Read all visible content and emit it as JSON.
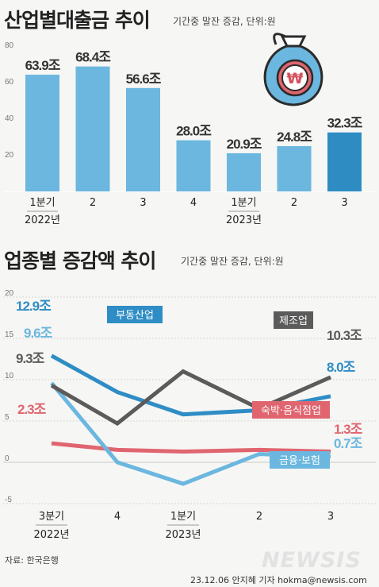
{
  "top": {
    "title": "산업별대출금 추이",
    "subtitle": "기간중 말잔 증감, 단위:원"
  },
  "bottom": {
    "title": "업종별 증감액 추이",
    "subtitle": "기간중 말잔 증감, 단위:원"
  },
  "chart_data": [
    {
      "type": "bar",
      "categories": [
        "1분기",
        "2",
        "3",
        "4",
        "1분기",
        "2",
        "3"
      ],
      "year_labels": [
        "2022년",
        "",
        "",
        "",
        "2023년",
        "",
        ""
      ],
      "values": [
        63.9,
        68.4,
        56.6,
        28.0,
        20.9,
        24.8,
        32.3
      ],
      "value_labels": [
        "63.9조",
        "68.4조",
        "56.6조",
        "28.0조",
        "20.9조",
        "24.8조",
        "32.3조"
      ],
      "yticks": [
        20,
        40,
        60,
        80
      ],
      "ylim": [
        0,
        80
      ],
      "grid": false,
      "colors": {
        "bar": "#6bb7df",
        "highlight": "#2e8cc3"
      }
    },
    {
      "type": "line",
      "categories": [
        "3분기",
        "4",
        "1분기",
        "2",
        "3"
      ],
      "year_labels": [
        "2022년",
        "",
        "2023년",
        "",
        ""
      ],
      "ylim": [
        -5,
        20
      ],
      "yticks": [
        -5,
        0,
        5,
        10,
        15,
        20
      ],
      "grid": true,
      "series": [
        {
          "name": "부동산업",
          "values": [
            12.9,
            8.5,
            5.8,
            6.3,
            8.0
          ],
          "start_label": "12.9조",
          "end_label": "8.0조",
          "color": "#2f8dc5"
        },
        {
          "name": "제조업",
          "values": [
            9.3,
            4.7,
            11.0,
            6.5,
            10.3
          ],
          "start_label": "9.3조",
          "end_label": "10.3조",
          "color": "#5b5b5b"
        },
        {
          "name": "숙박·음식점업",
          "values": [
            2.3,
            1.5,
            1.3,
            1.5,
            1.3
          ],
          "start_label": "2.3조",
          "end_label": "1.3조",
          "color": "#e0656f"
        },
        {
          "name": "금융·보험",
          "values": [
            9.6,
            0.0,
            -2.6,
            1.0,
            0.7
          ],
          "start_label": "9.6조",
          "end_label": "0.7조",
          "color": "#6bb7df"
        }
      ]
    }
  ],
  "source": "자료: 한국은행",
  "credit": "23.12.06 안지혜 기자 hokma@newsis.com",
  "logo": "NEWSIS",
  "icons": [
    "won-money-bag-icon"
  ]
}
